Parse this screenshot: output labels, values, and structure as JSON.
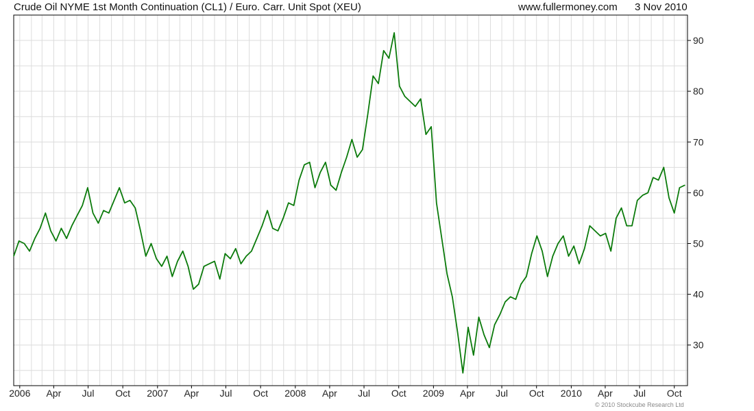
{
  "header": {
    "title": "Crude Oil NYME 1st Month Continuation (CL1) / Euro. Carr. Unit Spot (XEU)",
    "site": "www.fullermoney.com",
    "date": "3 Nov 2010"
  },
  "footer": {
    "copyright": "© 2010 Stockcube Research Ltd"
  },
  "colors": {
    "line": "#0a7a0a",
    "grid": "#dcdcdc",
    "axis": "#000000",
    "background": "#ffffff"
  },
  "chart_data": {
    "type": "line",
    "title": "Crude Oil NYME 1st Month Continuation (CL1) / Euro. Carr. Unit Spot (XEU)",
    "xlabel": "",
    "ylabel": "",
    "x_range": [
      "2005-12-16",
      "2010-11-05"
    ],
    "ylim": [
      22,
      95
    ],
    "y_ticks": [
      30,
      40,
      50,
      60,
      70,
      80,
      90
    ],
    "x_ticks": [
      {
        "label": "2006",
        "date": "2006-01-01"
      },
      {
        "label": "Apr",
        "date": "2006-04-01"
      },
      {
        "label": "Jul",
        "date": "2006-07-01"
      },
      {
        "label": "Oct",
        "date": "2006-10-01"
      },
      {
        "label": "2007",
        "date": "2007-01-01"
      },
      {
        "label": "Apr",
        "date": "2007-04-01"
      },
      {
        "label": "Jul",
        "date": "2007-07-01"
      },
      {
        "label": "Oct",
        "date": "2007-10-01"
      },
      {
        "label": "2008",
        "date": "2008-01-01"
      },
      {
        "label": "Apr",
        "date": "2008-04-01"
      },
      {
        "label": "Jul",
        "date": "2008-07-01"
      },
      {
        "label": "Oct",
        "date": "2008-10-01"
      },
      {
        "label": "2009",
        "date": "2009-01-01"
      },
      {
        "label": "Apr",
        "date": "2009-04-01"
      },
      {
        "label": "Jul",
        "date": "2009-07-01"
      },
      {
        "label": "Oct",
        "date": "2009-10-01"
      },
      {
        "label": "2010",
        "date": "2010-01-01"
      },
      {
        "label": "Apr",
        "date": "2010-04-01"
      },
      {
        "label": "Jul",
        "date": "2010-07-01"
      },
      {
        "label": "Oct",
        "date": "2010-10-01"
      }
    ],
    "grid": true,
    "legend": "none",
    "series": [
      {
        "color": "#0a7a0a",
        "points": [
          [
            "2005-12-16",
            47.5
          ],
          [
            "2005-12-30",
            50.5
          ],
          [
            "2006-01-13",
            50.0
          ],
          [
            "2006-01-27",
            48.5
          ],
          [
            "2006-02-10",
            51.0
          ],
          [
            "2006-02-24",
            53.0
          ],
          [
            "2006-03-10",
            56.0
          ],
          [
            "2006-03-24",
            52.5
          ],
          [
            "2006-04-07",
            50.5
          ],
          [
            "2006-04-21",
            53.0
          ],
          [
            "2006-05-05",
            51.0
          ],
          [
            "2006-05-19",
            53.5
          ],
          [
            "2006-06-02",
            55.5
          ],
          [
            "2006-06-16",
            57.5
          ],
          [
            "2006-06-30",
            61.0
          ],
          [
            "2006-07-14",
            56.0
          ],
          [
            "2006-07-28",
            54.0
          ],
          [
            "2006-08-11",
            56.5
          ],
          [
            "2006-08-25",
            56.0
          ],
          [
            "2006-09-08",
            58.5
          ],
          [
            "2006-09-22",
            61.0
          ],
          [
            "2006-10-06",
            58.0
          ],
          [
            "2006-10-20",
            58.5
          ],
          [
            "2006-11-03",
            57.0
          ],
          [
            "2006-11-17",
            52.5
          ],
          [
            "2006-12-01",
            47.5
          ],
          [
            "2006-12-15",
            50.0
          ],
          [
            "2006-12-29",
            47.0
          ],
          [
            "2007-01-12",
            45.5
          ],
          [
            "2007-01-26",
            47.5
          ],
          [
            "2007-02-09",
            43.5
          ],
          [
            "2007-02-23",
            46.5
          ],
          [
            "2007-03-09",
            48.5
          ],
          [
            "2007-03-23",
            45.5
          ],
          [
            "2007-04-06",
            41.0
          ],
          [
            "2007-04-20",
            42.0
          ],
          [
            "2007-05-04",
            45.5
          ],
          [
            "2007-05-18",
            46.0
          ],
          [
            "2007-06-01",
            46.5
          ],
          [
            "2007-06-15",
            43.0
          ],
          [
            "2007-06-29",
            48.0
          ],
          [
            "2007-07-13",
            47.0
          ],
          [
            "2007-07-27",
            49.0
          ],
          [
            "2007-08-10",
            46.0
          ],
          [
            "2007-08-24",
            47.5
          ],
          [
            "2007-09-07",
            48.5
          ],
          [
            "2007-09-21",
            51.0
          ],
          [
            "2007-10-05",
            53.5
          ],
          [
            "2007-10-19",
            56.5
          ],
          [
            "2007-11-02",
            53.0
          ],
          [
            "2007-11-16",
            52.5
          ],
          [
            "2007-11-30",
            55.0
          ],
          [
            "2007-12-14",
            58.0
          ],
          [
            "2007-12-28",
            57.5
          ],
          [
            "2008-01-11",
            62.5
          ],
          [
            "2008-01-25",
            65.5
          ],
          [
            "2008-02-08",
            66.0
          ],
          [
            "2008-02-22",
            61.0
          ],
          [
            "2008-03-07",
            64.0
          ],
          [
            "2008-03-21",
            66.0
          ],
          [
            "2008-04-04",
            61.5
          ],
          [
            "2008-04-18",
            60.5
          ],
          [
            "2008-05-02",
            64.0
          ],
          [
            "2008-05-16",
            67.0
          ],
          [
            "2008-05-30",
            70.5
          ],
          [
            "2008-06-13",
            67.0
          ],
          [
            "2008-06-27",
            68.5
          ],
          [
            "2008-07-11",
            75.5
          ],
          [
            "2008-07-25",
            83.0
          ],
          [
            "2008-08-08",
            81.5
          ],
          [
            "2008-08-22",
            88.0
          ],
          [
            "2008-09-05",
            86.5
          ],
          [
            "2008-09-19",
            91.5
          ],
          [
            "2008-10-03",
            81.0
          ],
          [
            "2008-10-17",
            79.0
          ],
          [
            "2008-10-31",
            78.0
          ],
          [
            "2008-11-14",
            77.0
          ],
          [
            "2008-11-28",
            78.5
          ],
          [
            "2008-12-12",
            71.5
          ],
          [
            "2008-12-26",
            73.0
          ],
          [
            "2009-01-09",
            58.0
          ],
          [
            "2009-01-23",
            51.0
          ],
          [
            "2009-02-06",
            44.0
          ],
          [
            "2009-02-20",
            39.5
          ],
          [
            "2009-03-06",
            32.5
          ],
          [
            "2009-03-20",
            24.5
          ],
          [
            "2009-04-03",
            33.5
          ],
          [
            "2009-04-17",
            28.0
          ],
          [
            "2009-05-01",
            35.5
          ],
          [
            "2009-05-15",
            32.0
          ],
          [
            "2009-05-29",
            29.5
          ],
          [
            "2009-06-12",
            34.0
          ],
          [
            "2009-06-26",
            36.0
          ],
          [
            "2009-07-10",
            38.5
          ],
          [
            "2009-07-24",
            39.5
          ],
          [
            "2009-08-07",
            39.0
          ],
          [
            "2009-08-21",
            42.0
          ],
          [
            "2009-09-04",
            43.5
          ],
          [
            "2009-09-18",
            48.0
          ],
          [
            "2009-10-02",
            51.5
          ],
          [
            "2009-10-16",
            48.5
          ],
          [
            "2009-10-30",
            43.5
          ],
          [
            "2009-11-13",
            47.5
          ],
          [
            "2009-11-27",
            50.0
          ],
          [
            "2009-12-11",
            51.5
          ],
          [
            "2009-12-25",
            47.5
          ],
          [
            "2010-01-08",
            49.5
          ],
          [
            "2010-01-22",
            46.0
          ],
          [
            "2010-02-05",
            49.0
          ],
          [
            "2010-02-19",
            53.5
          ],
          [
            "2010-03-05",
            52.5
          ],
          [
            "2010-03-19",
            51.5
          ],
          [
            "2010-04-02",
            52.0
          ],
          [
            "2010-04-16",
            48.5
          ],
          [
            "2010-04-30",
            55.0
          ],
          [
            "2010-05-14",
            57.0
          ],
          [
            "2010-05-28",
            53.5
          ],
          [
            "2010-06-11",
            53.5
          ],
          [
            "2010-06-25",
            58.5
          ],
          [
            "2010-07-09",
            59.5
          ],
          [
            "2010-07-23",
            60.0
          ],
          [
            "2010-08-06",
            63.0
          ],
          [
            "2010-08-20",
            62.5
          ],
          [
            "2010-09-03",
            65.0
          ],
          [
            "2010-09-17",
            59.0
          ],
          [
            "2010-10-01",
            56.0
          ],
          [
            "2010-10-15",
            61.0
          ],
          [
            "2010-10-29",
            61.5
          ]
        ]
      }
    ]
  }
}
